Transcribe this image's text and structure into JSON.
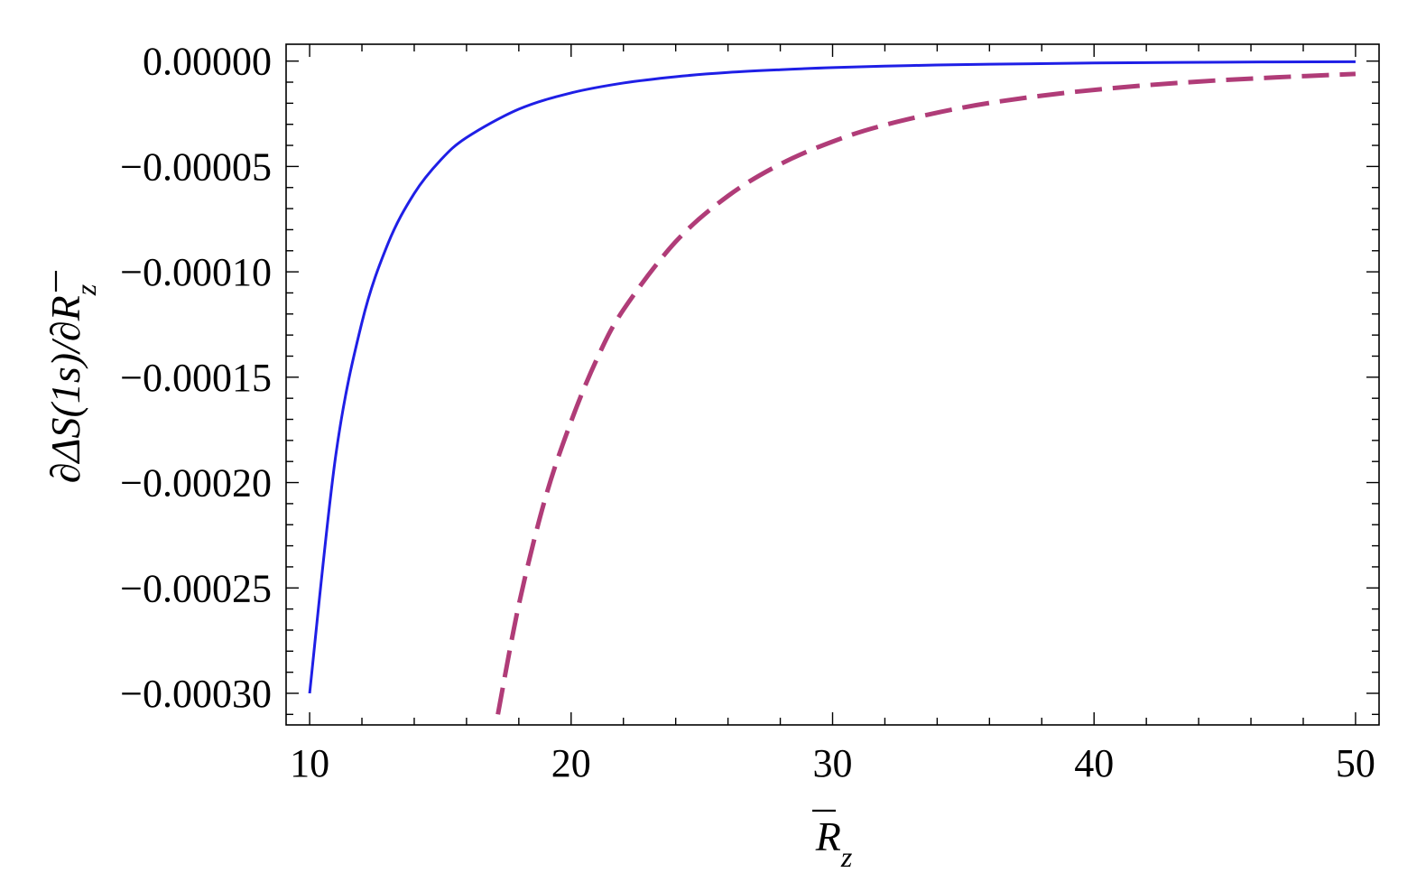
{
  "chart_data": {
    "type": "line",
    "title": "",
    "xlabel": "R̄z",
    "ylabel": "∂ΔS(1s)/∂R̄z",
    "xlim": [
      9.1,
      50.9
    ],
    "ylim": [
      -0.000315,
      8e-06
    ],
    "xticks": [
      {
        "value": 10,
        "label": "10"
      },
      {
        "value": 20,
        "label": "20"
      },
      {
        "value": 30,
        "label": "30"
      },
      {
        "value": 40,
        "label": "40"
      },
      {
        "value": 50,
        "label": "50"
      }
    ],
    "yticks": [
      {
        "value": 0.0,
        "label": "0.00000"
      },
      {
        "value": -5e-05,
        "label": "−0.00005"
      },
      {
        "value": -0.0001,
        "label": "−0.00010"
      },
      {
        "value": -0.00015,
        "label": "−0.00015"
      },
      {
        "value": -0.0002,
        "label": "−0.00020"
      },
      {
        "value": -0.00025,
        "label": "−0.00025"
      },
      {
        "value": -0.0003,
        "label": "−0.00030"
      }
    ],
    "grid": false,
    "legend": "none",
    "series": [
      {
        "style": "solid",
        "color": "#1f1fe6",
        "x": [
          10,
          11,
          12,
          13,
          14,
          15,
          16,
          18,
          20,
          22,
          24,
          26,
          28,
          30,
          33,
          36,
          40,
          45,
          50
        ],
        "y": [
          -0.0003,
          -0.000187,
          -0.000124,
          -8.65e-05,
          -6.28e-05,
          -4.71e-05,
          -3.63e-05,
          -2.28e-05,
          -1.51e-05,
          -1.04e-05,
          -7.4e-06,
          -5.4e-06,
          -4.1e-06,
          -3.1e-06,
          -2.1e-06,
          -1.5e-06,
          -9e-07,
          -5e-07,
          -3e-07
        ]
      },
      {
        "style": "dashed",
        "color": "#b03c78",
        "x": [
          17.2,
          18,
          19,
          20,
          21,
          22,
          24,
          26,
          28,
          30,
          32,
          35,
          38,
          41,
          44,
          47,
          50
        ],
        "y": [
          -0.00031,
          -0.000258,
          -0.000208,
          -0.000171,
          -0.000141,
          -0.000118,
          -8.57e-05,
          -6.4e-05,
          -4.89e-05,
          -3.82e-05,
          -3.03e-05,
          -2.2e-05,
          -1.64e-05,
          -1.25e-05,
          -9.7e-06,
          -7.7e-06,
          -6.1e-06
        ]
      }
    ]
  }
}
